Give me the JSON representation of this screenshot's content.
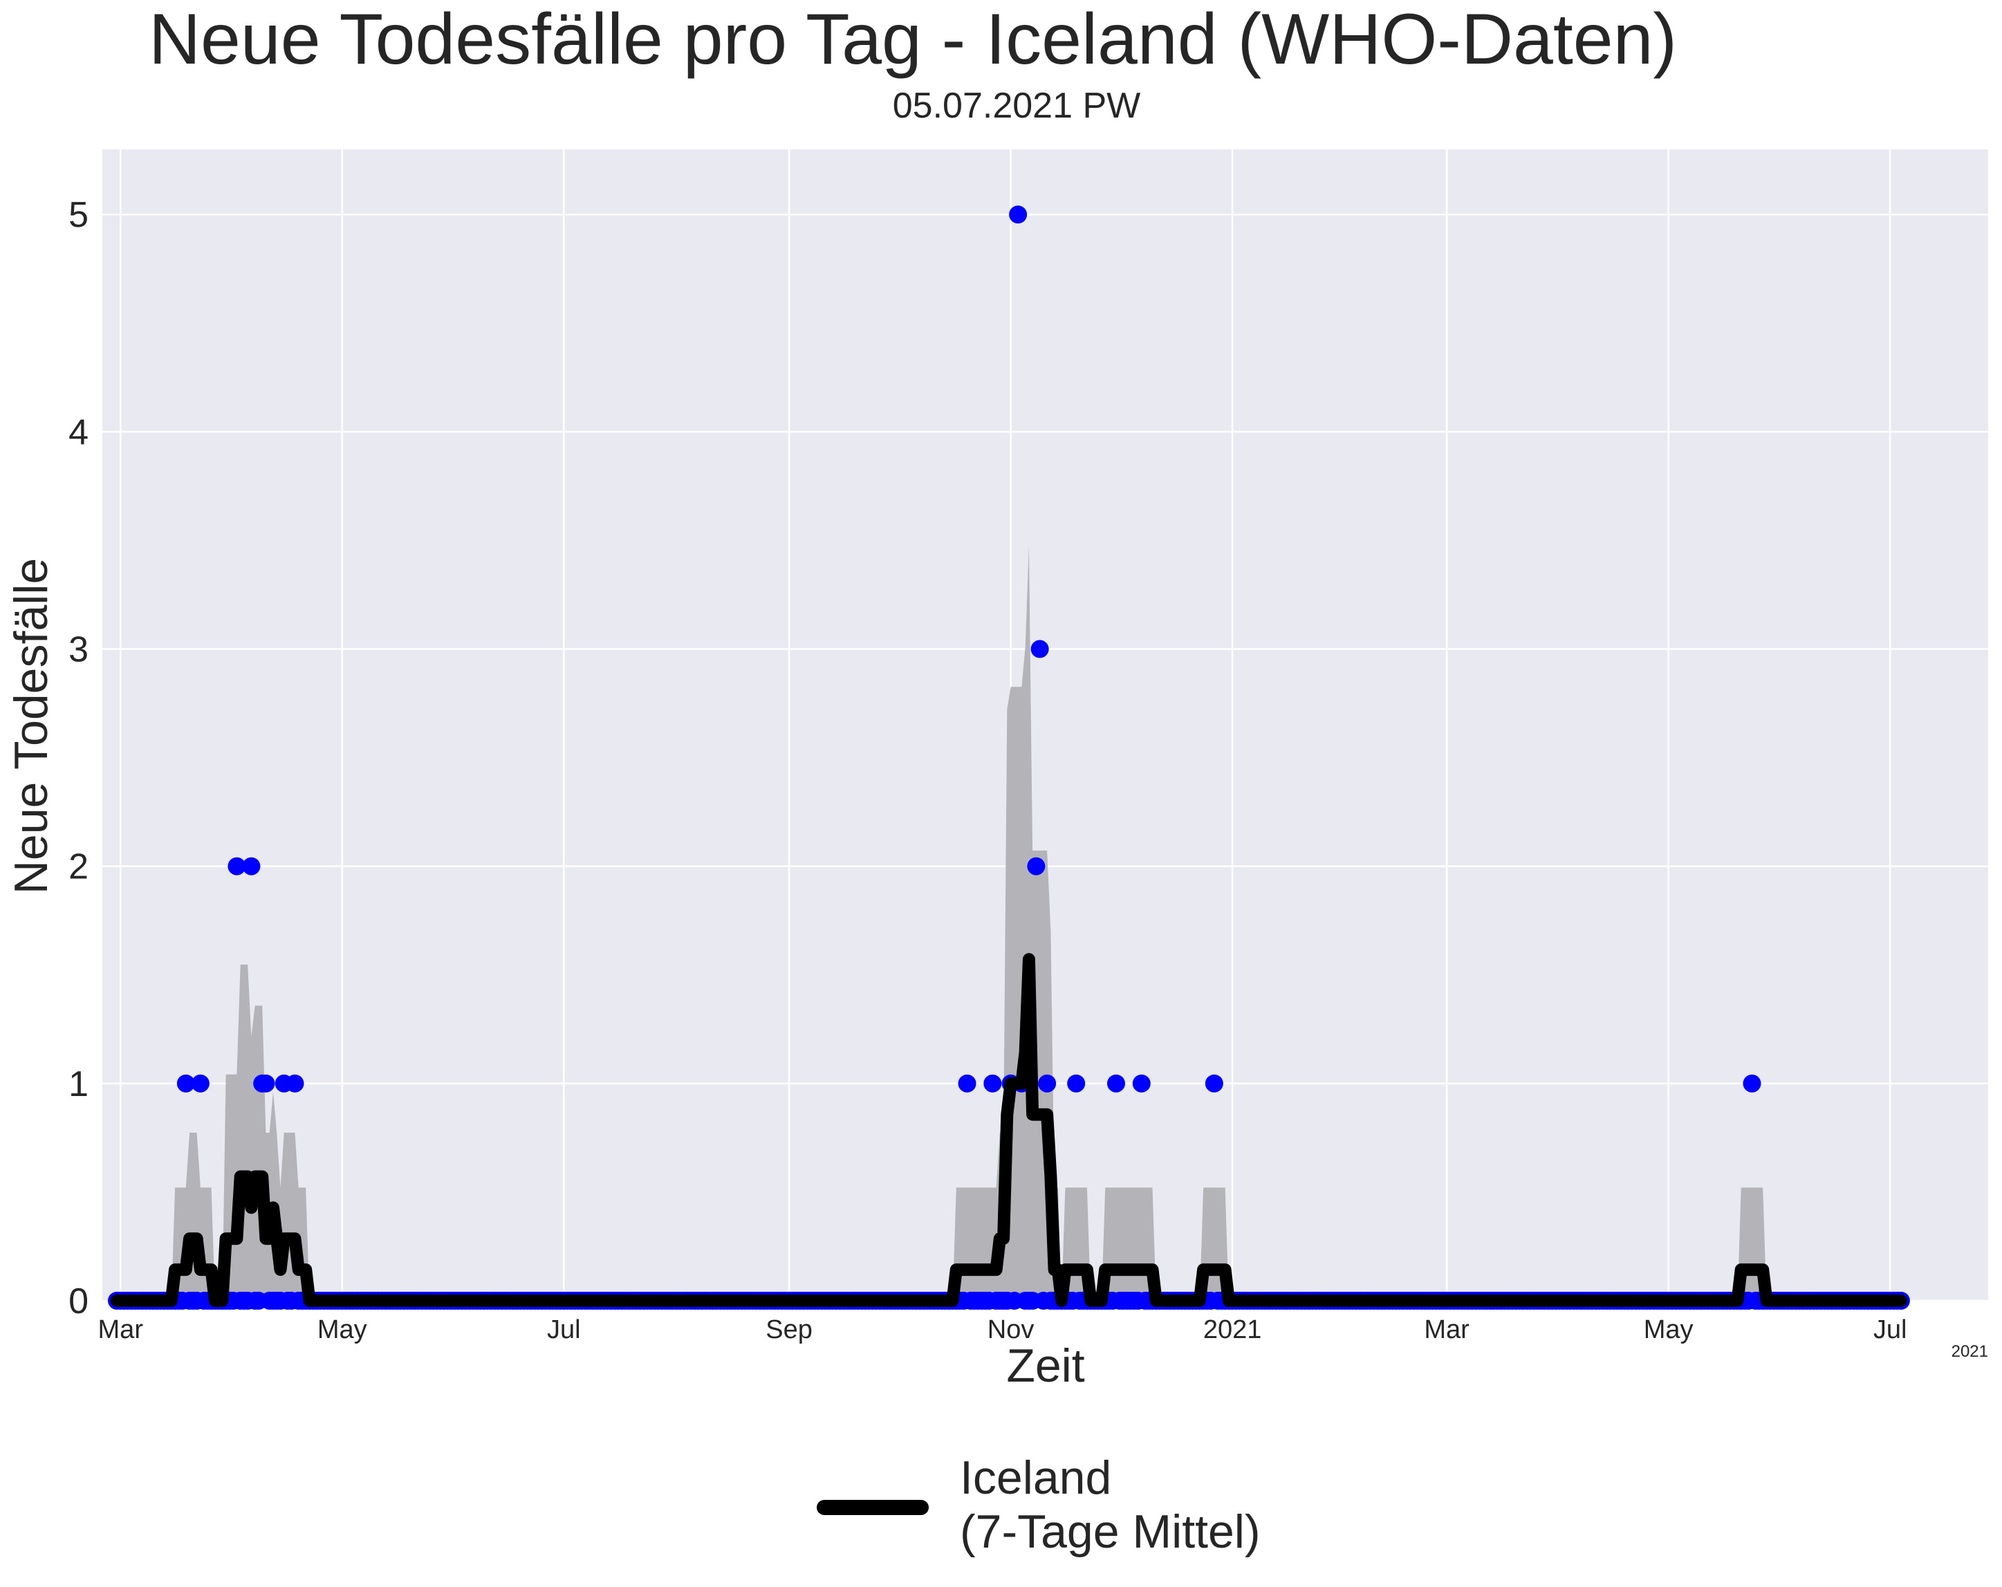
{
  "chart_data": {
    "type": "line",
    "title": "Neue Todesfälle pro Tag - Iceland (WHO-Daten)",
    "subtitle": "05.07.2021 PW",
    "xlabel": "Zeit",
    "ylabel": "Neue Todesfälle",
    "x_offset_label": "2021",
    "xlim": [
      "2020-02-25",
      "2021-07-28"
    ],
    "ylim": [
      0,
      5.3
    ],
    "yticks": [
      0,
      1,
      2,
      3,
      4,
      5
    ],
    "xticks": [
      {
        "date": "2020-03-01",
        "label": "Mar"
      },
      {
        "date": "2020-05-01",
        "label": "May"
      },
      {
        "date": "2020-07-01",
        "label": "Jul"
      },
      {
        "date": "2020-09-01",
        "label": "Sep"
      },
      {
        "date": "2020-11-01",
        "label": "Nov"
      },
      {
        "date": "2021-01-01",
        "label": "2021"
      },
      {
        "date": "2021-03-01",
        "label": "Mar"
      },
      {
        "date": "2021-05-01",
        "label": "May"
      },
      {
        "date": "2021-07-01",
        "label": "Jul"
      }
    ],
    "grid": true,
    "legend_position": "bottom-center",
    "date_range": [
      "2020-02-29",
      "2021-07-04"
    ],
    "daily_deaths": [
      {
        "date": "2020-03-19",
        "value": 1
      },
      {
        "date": "2020-03-23",
        "value": 1
      },
      {
        "date": "2020-04-02",
        "value": 2
      },
      {
        "date": "2020-04-06",
        "value": 2
      },
      {
        "date": "2020-04-09",
        "value": 1
      },
      {
        "date": "2020-04-10",
        "value": 1
      },
      {
        "date": "2020-04-15",
        "value": 1
      },
      {
        "date": "2020-04-18",
        "value": 1
      },
      {
        "date": "2020-10-20",
        "value": 1
      },
      {
        "date": "2020-10-27",
        "value": 1
      },
      {
        "date": "2020-11-01",
        "value": 1
      },
      {
        "date": "2020-11-03",
        "value": 5
      },
      {
        "date": "2020-11-04",
        "value": 1
      },
      {
        "date": "2020-11-08",
        "value": 2
      },
      {
        "date": "2020-11-09",
        "value": 3
      },
      {
        "date": "2020-11-11",
        "value": 1
      },
      {
        "date": "2020-11-19",
        "value": 1
      },
      {
        "date": "2020-11-30",
        "value": 1
      },
      {
        "date": "2020-12-07",
        "value": 1
      },
      {
        "date": "2020-12-27",
        "value": 1
      },
      {
        "date": "2021-05-24",
        "value": 1
      }
    ],
    "series": [
      {
        "name": "Iceland\n(7-Tage Mittel)",
        "type": "rolling_mean",
        "window": 7,
        "color": "#000000"
      },
      {
        "name": "",
        "type": "scatter",
        "color": "#0000ff"
      },
      {
        "name": "",
        "type": "band",
        "color": "#b4b4b8"
      }
    ],
    "colors": {
      "plot_background": "#e9e9f1",
      "grid": "#ffffff",
      "points": "#0000ff",
      "mean_line": "#000000",
      "band": "#b4b4b8"
    }
  }
}
